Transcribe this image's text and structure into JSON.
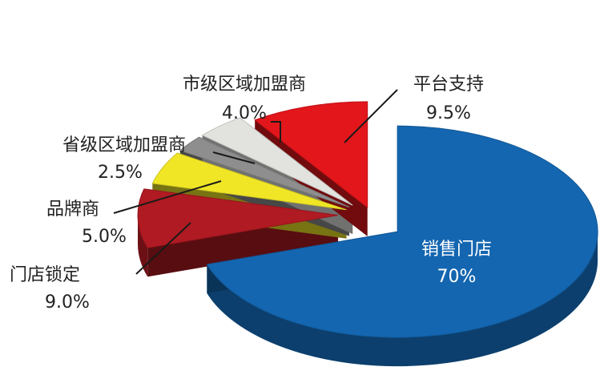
{
  "chart_data": {
    "type": "pie",
    "style": "3d-exploded",
    "title": "",
    "series": [
      {
        "name": "销售门店",
        "value": 70.0,
        "label": "70%",
        "color": "#1466b0"
      },
      {
        "name": "门店锁定",
        "value": 9.0,
        "label": "9.0%",
        "color": "#b01a22"
      },
      {
        "name": "品牌商",
        "value": 5.0,
        "label": "5.0%",
        "color": "#f0e626"
      },
      {
        "name": "省级区域加盟商",
        "value": 2.5,
        "label": "2.5%",
        "color": "#8e8e8e"
      },
      {
        "name": "市级区域加盟商",
        "value": 4.0,
        "label": "4.0%",
        "color": "#e2e2de"
      },
      {
        "name": "平台支持",
        "value": 9.5,
        "label": "9.5%",
        "color": "#e2161b"
      }
    ]
  }
}
